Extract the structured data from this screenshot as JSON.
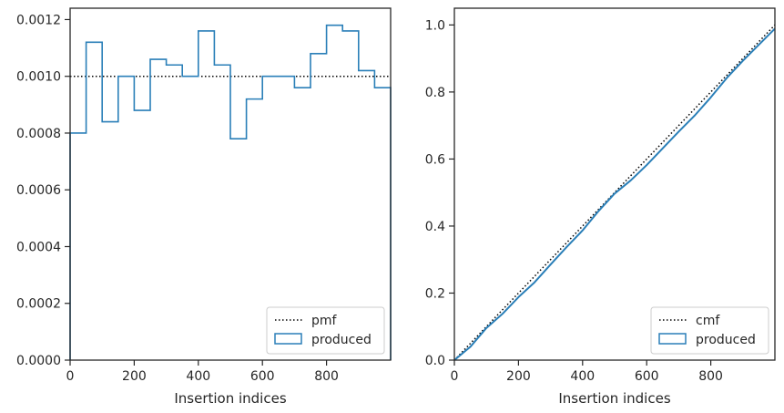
{
  "chart_data": [
    {
      "type": "line",
      "title": "",
      "xlabel": "Insertion indices",
      "ylabel": "",
      "xlim": [
        0,
        1000
      ],
      "ylim": [
        0,
        0.00124
      ],
      "xticks": [
        0,
        200,
        400,
        600,
        800
      ],
      "xtick_labels": [
        "0",
        "200",
        "400",
        "600",
        "800"
      ],
      "yticks": [
        0,
        0.0002,
        0.0004,
        0.0006,
        0.0008,
        0.001,
        0.0012
      ],
      "ytick_labels": [
        "0.0000",
        "0.0002",
        "0.0004",
        "0.0006",
        "0.0008",
        "0.0010",
        "0.0012"
      ],
      "grid": false,
      "legend_position": "bottom-right",
      "series": [
        {
          "name": "pmf",
          "style": "dotted",
          "color": "#000000",
          "x": [
            0,
            1000
          ],
          "values": [
            0.001,
            0.001
          ]
        },
        {
          "name": "produced",
          "style": "step-histogram",
          "color": "#2a7fb8",
          "bin_edges": [
            0,
            50,
            100,
            150,
            200,
            250,
            300,
            350,
            400,
            450,
            500,
            550,
            600,
            650,
            700,
            750,
            800,
            850,
            900,
            950,
            1000
          ],
          "values": [
            0.0008,
            0.00112,
            0.00084,
            0.001,
            0.00088,
            0.00106,
            0.00104,
            0.001,
            0.00116,
            0.00104,
            0.00078,
            0.00092,
            0.001,
            0.001,
            0.00096,
            0.00108,
            0.00118,
            0.00116,
            0.00102,
            0.00096
          ]
        }
      ]
    },
    {
      "type": "line",
      "title": "",
      "xlabel": "Insertion indices",
      "ylabel": "",
      "xlim": [
        0,
        1000
      ],
      "ylim": [
        0,
        1.05
      ],
      "xticks": [
        0,
        200,
        400,
        600,
        800
      ],
      "xtick_labels": [
        "0",
        "200",
        "400",
        "600",
        "800"
      ],
      "yticks": [
        0,
        0.2,
        0.4,
        0.6,
        0.8,
        1.0
      ],
      "ytick_labels": [
        "0.0",
        "0.2",
        "0.4",
        "0.6",
        "0.8",
        "1.0"
      ],
      "grid": false,
      "legend_position": "bottom-right",
      "series": [
        {
          "name": "cmf",
          "style": "dotted",
          "color": "#000000",
          "x": [
            0,
            1000
          ],
          "values": [
            0,
            1
          ]
        },
        {
          "name": "produced",
          "style": "solid",
          "color": "#2a7fb8",
          "x": [
            0,
            50,
            100,
            150,
            200,
            250,
            300,
            350,
            400,
            450,
            500,
            550,
            600,
            650,
            700,
            750,
            800,
            850,
            900,
            950,
            1000
          ],
          "values": [
            0,
            0.04,
            0.096,
            0.138,
            0.188,
            0.232,
            0.285,
            0.337,
            0.387,
            0.445,
            0.497,
            0.536,
            0.582,
            0.632,
            0.682,
            0.73,
            0.784,
            0.842,
            0.893,
            0.941,
            0.989
          ]
        }
      ]
    }
  ],
  "colors": {
    "produced": "#2a7fb8",
    "reference": "#000000",
    "axes": "#262626",
    "legend_border": "#cccccc"
  }
}
